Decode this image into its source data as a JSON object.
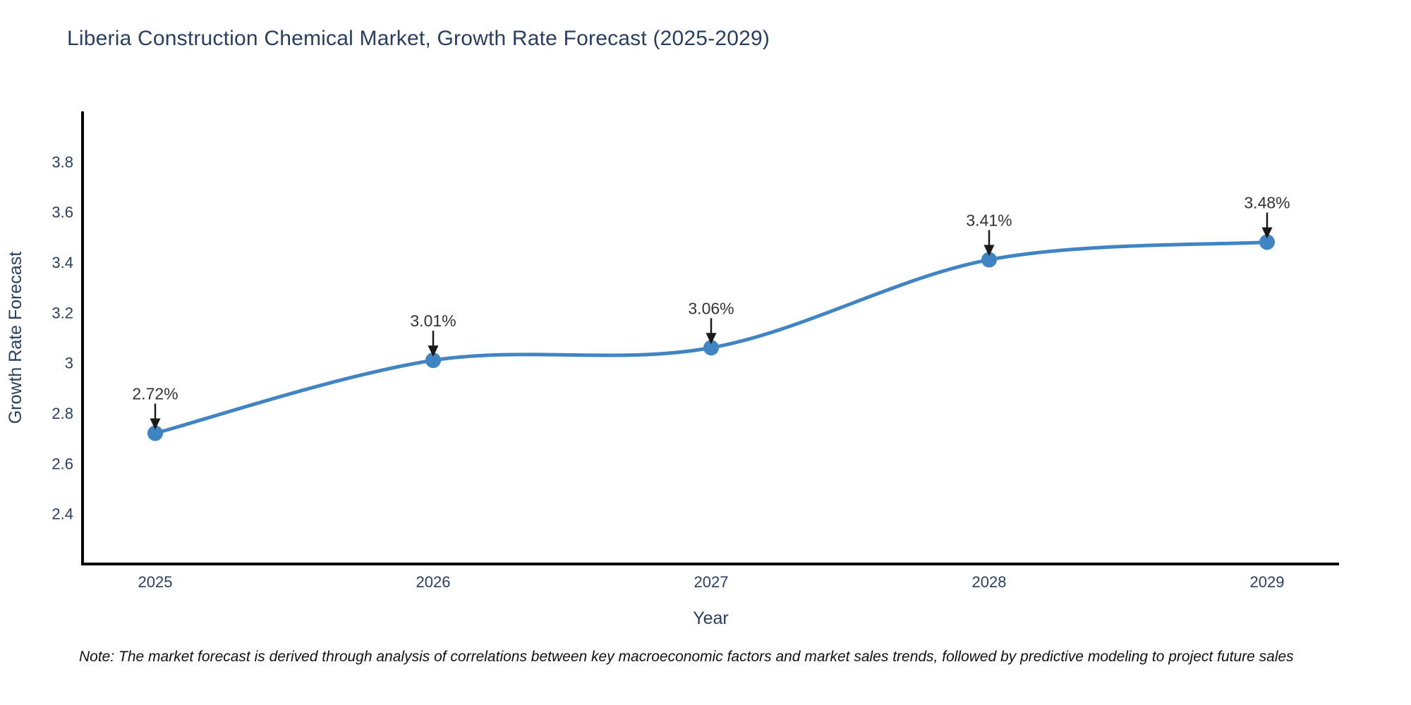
{
  "chart_data": {
    "type": "line",
    "title": "Liberia Construction Chemical Market, Growth Rate Forecast (2025-2029)",
    "xlabel": "Year",
    "ylabel": "Growth Rate Forecast",
    "x": [
      2025,
      2026,
      2027,
      2028,
      2029
    ],
    "x_tick_labels": [
      "2025",
      "2026",
      "2027",
      "2028",
      "2029"
    ],
    "series": [
      {
        "name": "Growth Rate Forecast",
        "values": [
          2.72,
          3.01,
          3.06,
          3.41,
          3.48
        ]
      }
    ],
    "point_labels": [
      "2.72%",
      "3.01%",
      "3.06%",
      "3.41%",
      "3.48%"
    ],
    "ylim": [
      2.2,
      4.0
    ],
    "yticks": [
      2.4,
      2.6,
      2.8,
      3,
      3.2,
      3.4,
      3.6,
      3.8
    ],
    "ytick_labels": [
      "2.4",
      "2.6",
      "2.8",
      "3",
      "3.2",
      "3.4",
      "3.6",
      "3.8"
    ],
    "grid": false,
    "legend": "none",
    "line_shape": "spline",
    "colors": {
      "line": "#4184c4",
      "marker": "#4184c4",
      "title": "#2a3f5f",
      "axis_text": "#2a3f5f",
      "axis_line": "#000000",
      "annotation": "#333333",
      "arrow": "#1a1a1a",
      "note": "#111111"
    },
    "note": "Note: The market forecast is derived through analysis of correlations between key macroeconomic factors and market sales trends, followed by predictive modeling to project future sales"
  }
}
